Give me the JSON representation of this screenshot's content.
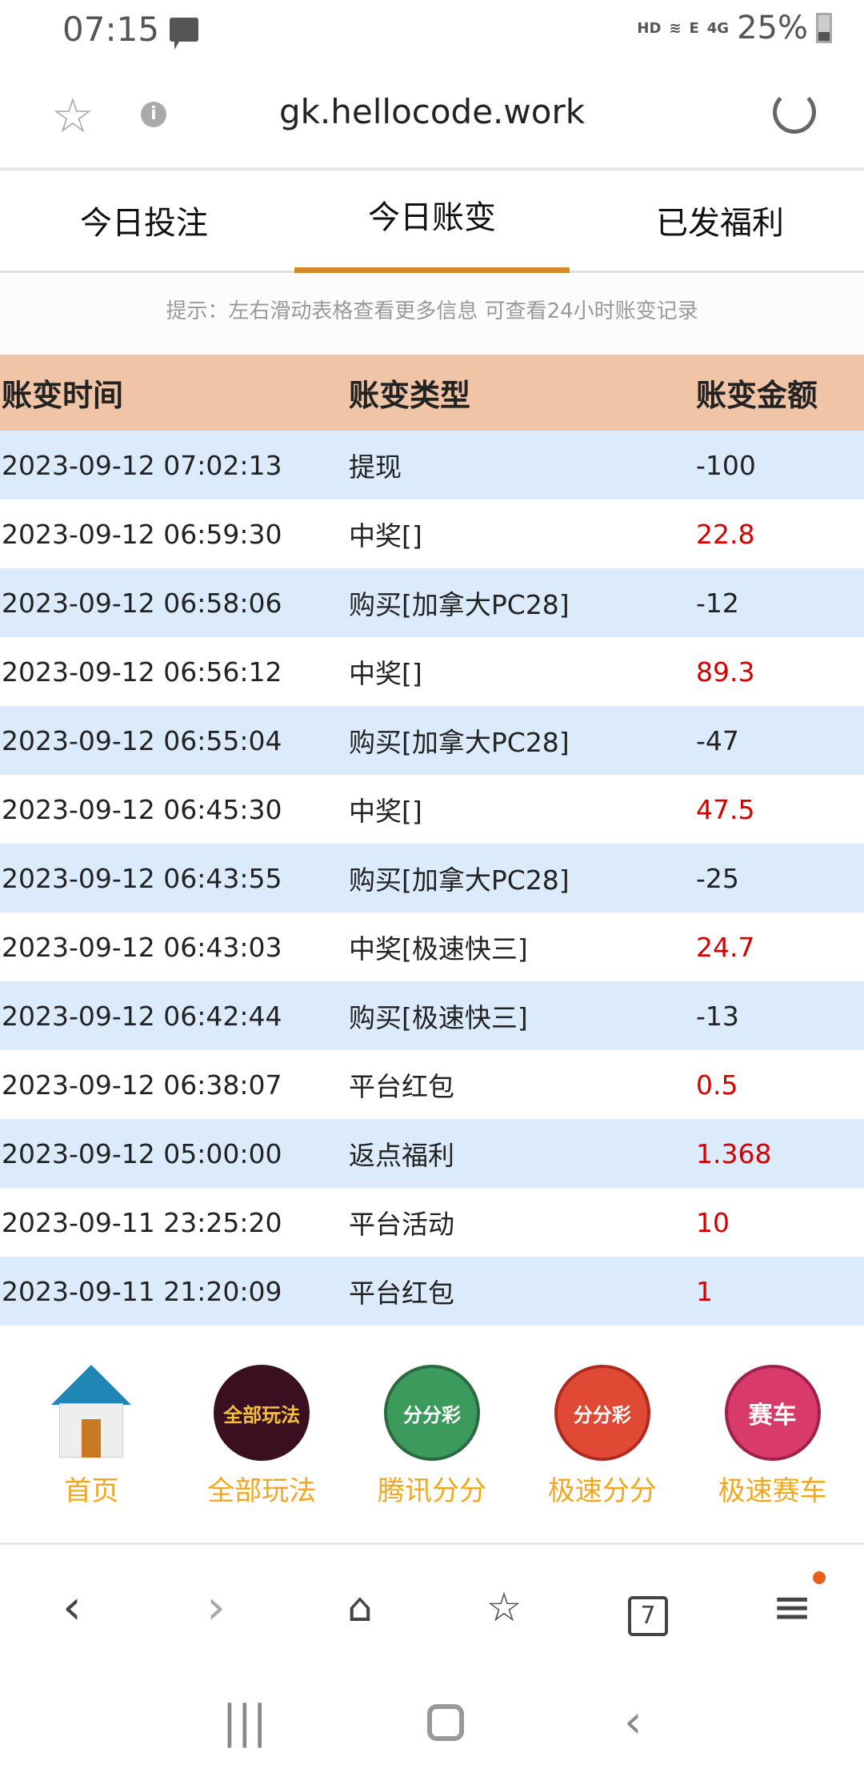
{
  "status_bar": {
    "time": "07:15",
    "hd": "HD",
    "net1": "E",
    "net2": "4G",
    "battery": "25%"
  },
  "browser": {
    "url": "gk.hellocode.work"
  },
  "tabs": [
    {
      "label": "今日投注"
    },
    {
      "label": "今日账变",
      "active": true
    },
    {
      "label": "已发福利"
    }
  ],
  "hint": "提示：左右滑动表格查看更多信息  可查看24小时账变记录",
  "table": {
    "headers": [
      "账变时间",
      "账变类型",
      "账变金额"
    ],
    "rows": [
      {
        "time": "2023-09-12 07:02:13",
        "type": "提现",
        "amount": "-100"
      },
      {
        "time": "2023-09-12 06:59:30",
        "type": "中奖[]",
        "amount": "22.8"
      },
      {
        "time": "2023-09-12 06:58:06",
        "type": "购买[加拿大PC28]",
        "amount": "-12"
      },
      {
        "time": "2023-09-12 06:56:12",
        "type": "中奖[]",
        "amount": "89.3"
      },
      {
        "time": "2023-09-12 06:55:04",
        "type": "购买[加拿大PC28]",
        "amount": "-47"
      },
      {
        "time": "2023-09-12 06:45:30",
        "type": "中奖[]",
        "amount": "47.5"
      },
      {
        "time": "2023-09-12 06:43:55",
        "type": "购买[加拿大PC28]",
        "amount": "-25"
      },
      {
        "time": "2023-09-12 06:43:03",
        "type": "中奖[极速快三]",
        "amount": "24.7"
      },
      {
        "time": "2023-09-12 06:42:44",
        "type": "购买[极速快三]",
        "amount": "-13"
      },
      {
        "time": "2023-09-12 06:38:07",
        "type": "平台红包",
        "amount": "0.5"
      },
      {
        "time": "2023-09-12 05:00:00",
        "type": "返点福利",
        "amount": "1.368"
      },
      {
        "time": "2023-09-11 23:25:20",
        "type": "平台活动",
        "amount": "10"
      },
      {
        "time": "2023-09-11 21:20:09",
        "type": "平台红包",
        "amount": "1"
      }
    ]
  },
  "quick_nav": [
    {
      "label": "首页",
      "icon": "home-icon"
    },
    {
      "label": "全部玩法",
      "icon_text": "全部玩法",
      "color": "#3a1020"
    },
    {
      "label": "腾讯分分",
      "icon_text": "分分彩",
      "color": "#3c9a5c"
    },
    {
      "label": "极速分分",
      "icon_text": "分分彩",
      "color": "#e04a35"
    },
    {
      "label": "极速赛车",
      "icon_text": "赛车",
      "color": "#d83a6a"
    }
  ],
  "browser_nav": {
    "tab_count": "7"
  },
  "colors": {
    "accent": "#d48a26",
    "header_bg": "#efc4a7",
    "row_alt": "#dcebfb",
    "positive": "#d40000",
    "quick_label": "#f0a823"
  }
}
